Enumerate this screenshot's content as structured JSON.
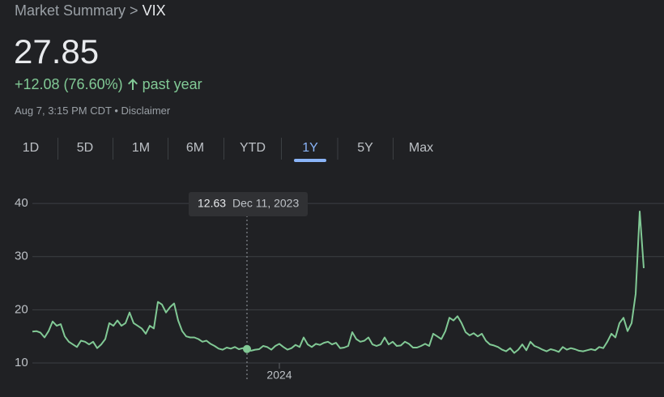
{
  "header": {
    "breadcrumb": "Market Summary >",
    "ticker": "VIX",
    "price": "27.85",
    "change": "+12.08 (76.60%)",
    "period": "past year",
    "timestamp": "Aug 7, 3:15 PM CDT",
    "separator": "•",
    "disclaimer": "Disclaimer"
  },
  "tabs": [
    "1D",
    "5D",
    "1M",
    "6M",
    "YTD",
    "1Y",
    "5Y",
    "Max"
  ],
  "active_tab": 5,
  "chart_data": {
    "type": "line",
    "color": "#81c995",
    "grid": true,
    "values": [
      15.9,
      16.0,
      15.7,
      14.8,
      16.0,
      17.8,
      17.0,
      17.3,
      15.0,
      14.0,
      13.5,
      13.0,
      14.2,
      14.0,
      13.5,
      14.0,
      12.8,
      13.5,
      14.5,
      17.5,
      17.0,
      18.0,
      17.0,
      17.5,
      19.5,
      17.5,
      17.0,
      16.5,
      15.5,
      17.0,
      16.5,
      21.5,
      21.0,
      19.5,
      20.5,
      21.2,
      18.0,
      16.0,
      15.0,
      14.8,
      14.8,
      14.5,
      14.0,
      14.2,
      13.6,
      13.2,
      12.7,
      12.5,
      12.9,
      12.7,
      13.0,
      12.6,
      12.8,
      12.63,
      12.3,
      12.5,
      12.6,
      13.2,
      13.0,
      12.5,
      13.2,
      13.6,
      13.0,
      12.5,
      12.8,
      13.4,
      13.0,
      14.8,
      13.5,
      13.0,
      13.6,
      13.4,
      13.8,
      14.0,
      13.5,
      13.8,
      12.8,
      12.9,
      13.2,
      15.8,
      14.5,
      14.0,
      14.2,
      14.8,
      13.5,
      13.2,
      13.5,
      14.8,
      13.5,
      14.0,
      13.2,
      13.3,
      14.0,
      13.6,
      12.9,
      12.9,
      13.2,
      13.6,
      13.2,
      15.5,
      15.0,
      14.5,
      16.0,
      18.5,
      18.0,
      18.8,
      17.5,
      15.8,
      15.2,
      15.6,
      15.0,
      15.5,
      14.2,
      13.5,
      13.3,
      13.0,
      12.5,
      12.2,
      12.8,
      11.9,
      12.5,
      13.5,
      12.4,
      14.0,
      13.2,
      12.9,
      12.5,
      12.2,
      12.6,
      12.4,
      12.1,
      13.0,
      12.5,
      12.8,
      12.6,
      12.3,
      12.2,
      12.4,
      12.6,
      12.4,
      13.0,
      12.8,
      14.0,
      15.5,
      14.8,
      17.5,
      18.5,
      16.0,
      17.5,
      23.0,
      38.5,
      27.85
    ],
    "xlim": [
      0,
      151
    ],
    "xticks": [
      {
        "value": 61,
        "label": "2024"
      }
    ],
    "ylim": [
      9,
      42
    ],
    "yticks": [
      10,
      20,
      30,
      40
    ],
    "tooltip": {
      "value": 12.63,
      "label": "Dec 11, 2023"
    }
  }
}
